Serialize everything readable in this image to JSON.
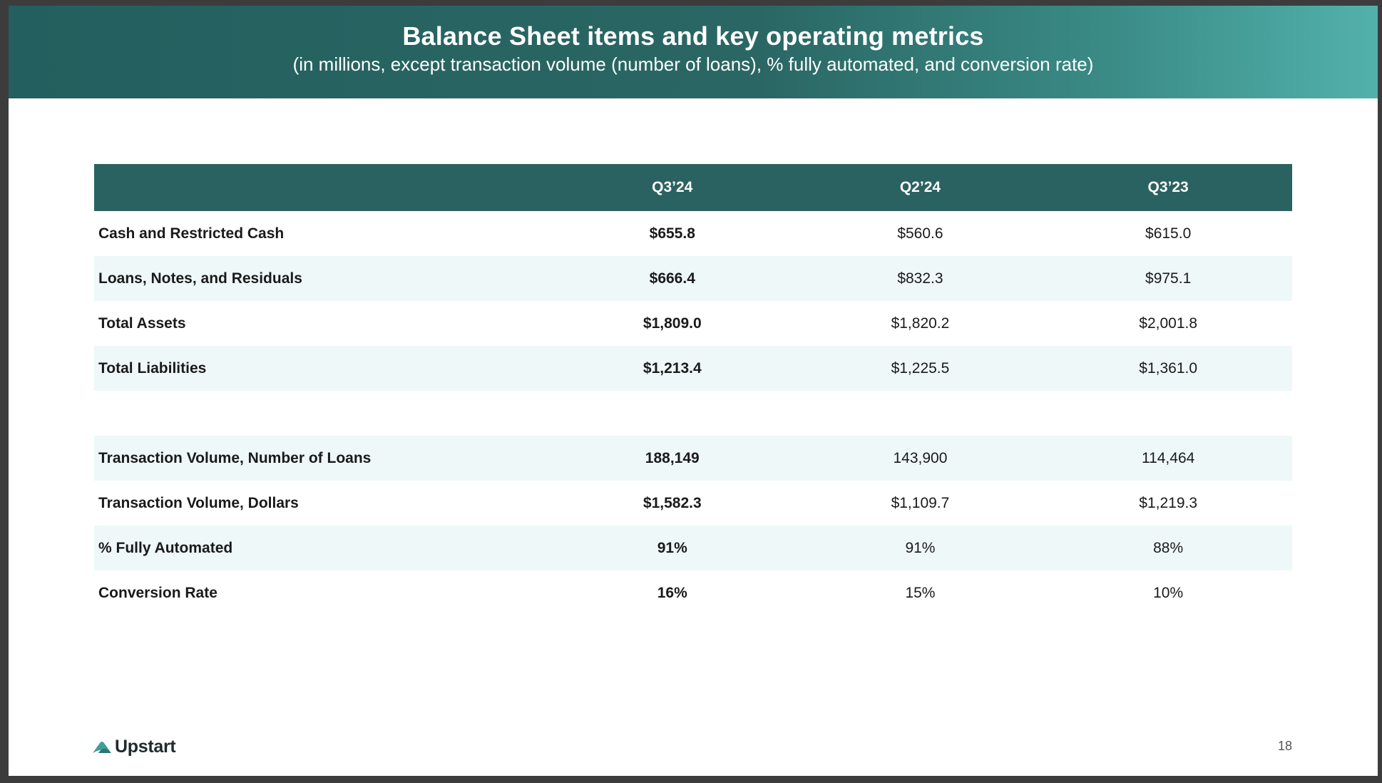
{
  "header": {
    "title": "Balance Sheet items and key operating metrics",
    "subtitle": "(in millions, except transaction volume (number of loans), % fully automated, and conversion rate)"
  },
  "table": {
    "columns": [
      "",
      "Q3’24",
      "Q2’24",
      "Q3’23"
    ],
    "balance_rows": [
      {
        "label": "Cash and Restricted Cash",
        "values": [
          "$655.8",
          "$560.6",
          "$615.0"
        ]
      },
      {
        "label": "Loans, Notes, and Residuals",
        "values": [
          "$666.4",
          "$832.3",
          "$975.1"
        ]
      },
      {
        "label": "Total Assets",
        "values": [
          "$1,809.0",
          "$1,820.2",
          "$2,001.8"
        ]
      },
      {
        "label": "Total Liabilities",
        "values": [
          "$1,213.4",
          "$1,225.5",
          "$1,361.0"
        ]
      }
    ],
    "operating_rows": [
      {
        "label": "Transaction Volume, Number of Loans",
        "values": [
          "188,149",
          "143,900",
          "114,464"
        ]
      },
      {
        "label": "Transaction Volume, Dollars",
        "values": [
          "$1,582.3",
          "$1,109.7",
          "$1,219.3"
        ]
      },
      {
        "label": "% Fully Automated",
        "values": [
          "91%",
          "91%",
          "88%"
        ]
      },
      {
        "label": "Conversion Rate",
        "values": [
          "16%",
          "15%",
          "10%"
        ]
      }
    ]
  },
  "footer": {
    "brand": "Upstart",
    "logo_icon": "upstart-cloud-icon",
    "page_number": "18"
  },
  "colors": {
    "header_dark": "#235f5e",
    "header_light": "#52b1ab",
    "table_header": "#2a6261",
    "row_tint": "#eef8f8",
    "logo_teal": "#3f9e98"
  }
}
